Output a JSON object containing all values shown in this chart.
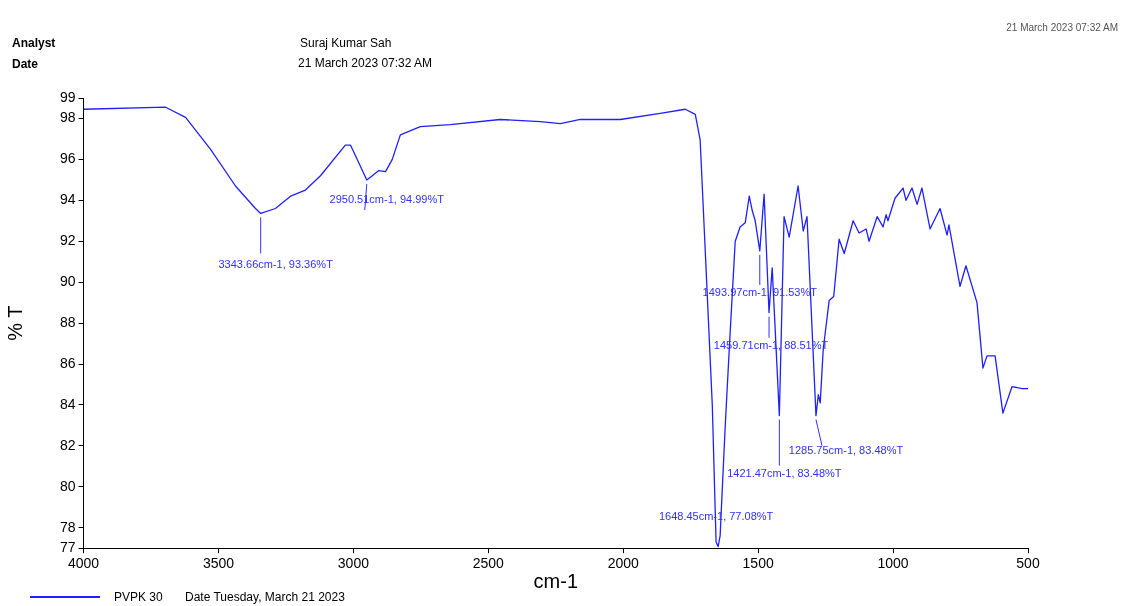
{
  "chart_data": {
    "type": "line",
    "xlabel": "cm-1",
    "ylabel": "% T",
    "xlim": [
      4000,
      500
    ],
    "xticks": [
      4000,
      3500,
      3000,
      2500,
      2000,
      1500,
      1000,
      500
    ],
    "ylim": [
      77,
      99
    ],
    "yticks": [
      77,
      78,
      80,
      82,
      84,
      86,
      88,
      90,
      92,
      94,
      96,
      98,
      99
    ],
    "grid": false,
    "legend": "bottom",
    "marker": "none",
    "line_style": "solid",
    "x": [
      4000,
      3696,
      3622,
      3530,
      3437,
      3363,
      3343.66,
      3289,
      3233,
      3178,
      3122,
      3030,
      3011,
      2993,
      2950.51,
      2930,
      2907,
      2881,
      2856,
      2826,
      2752,
      2641,
      2456,
      2307,
      2233,
      2159,
      2011,
      1863,
      1770,
      1733,
      1715,
      1696,
      1670,
      1656,
      1648.45,
      1641,
      1622,
      1604,
      1585,
      1567,
      1548,
      1533,
      1522,
      1511,
      1493.97,
      1478,
      1459.71,
      1448,
      1421.47,
      1404,
      1385,
      1352,
      1333,
      1319,
      1285.75,
      1277,
      1270,
      1259,
      1237,
      1220,
      1200,
      1181,
      1148,
      1126,
      1100,
      1089,
      1059,
      1037,
      1026,
      1019,
      993,
      963,
      952,
      930,
      911,
      893,
      863,
      826,
      800,
      793,
      752,
      730,
      689,
      667,
      652,
      622,
      593,
      559,
      522,
      500
    ],
    "annotations": [
      "Analyst",
      "Date",
      "Suraj Kumar Sah",
      "21 March 2023 07:32 AM",
      "21 March 2023 07:32 AM",
      "Date Tuesday, March 21 2023",
      {
        "text": "3343.66cm-1, 93.36%T",
        "x": 3343.66,
        "y": 93.36
      },
      {
        "text": "2950.51cm-1, 94.99%T",
        "x": 2950.51,
        "y": 94.99
      },
      {
        "text": "1648.45cm-1, 77.08%T",
        "x": 1648.45,
        "y": 77.08
      },
      {
        "text": "1493.97cm-1, 91.53%T",
        "x": 1493.97,
        "y": 91.53
      },
      {
        "text": "1459.71cm-1, 88.51%T",
        "x": 1459.71,
        "y": 88.51
      },
      {
        "text": "1421.47cm-1, 83.48%T",
        "x": 1421.47,
        "y": 83.48
      },
      {
        "text": "1285.75cm-1, 83.48%T",
        "x": 1285.75,
        "y": 83.48
      }
    ],
    "series": [
      {
        "name": "PVPK 30",
        "color": "#2020ff",
        "values": [
          98.45,
          98.55,
          98.05,
          96.5,
          94.7,
          93.6,
          93.36,
          93.6,
          94.2,
          94.5,
          95.2,
          96.7,
          96.7,
          96.2,
          94.99,
          95.2,
          95.45,
          95.4,
          96.0,
          97.2,
          97.6,
          97.7,
          97.95,
          97.85,
          97.75,
          97.95,
          97.95,
          98.25,
          98.45,
          98.2,
          96.95,
          91.5,
          84.0,
          77.3,
          77.08,
          77.6,
          83.0,
          87.5,
          92.0,
          92.7,
          92.9,
          94.2,
          93.5,
          93.0,
          91.53,
          94.3,
          88.51,
          90.7,
          83.48,
          93.2,
          92.2,
          94.7,
          92.5,
          93.2,
          83.48,
          84.5,
          84.1,
          86.7,
          89.1,
          89.3,
          92.1,
          91.4,
          93.0,
          92.4,
          92.6,
          92.0,
          93.2,
          92.7,
          93.3,
          93.0,
          94.1,
          94.6,
          94.0,
          94.6,
          93.8,
          94.6,
          92.6,
          93.6,
          92.3,
          92.8,
          89.8,
          90.8,
          89.0,
          85.8,
          86.4,
          86.4,
          83.6,
          84.9,
          84.8,
          84.8
        ]
      }
    ]
  }
}
